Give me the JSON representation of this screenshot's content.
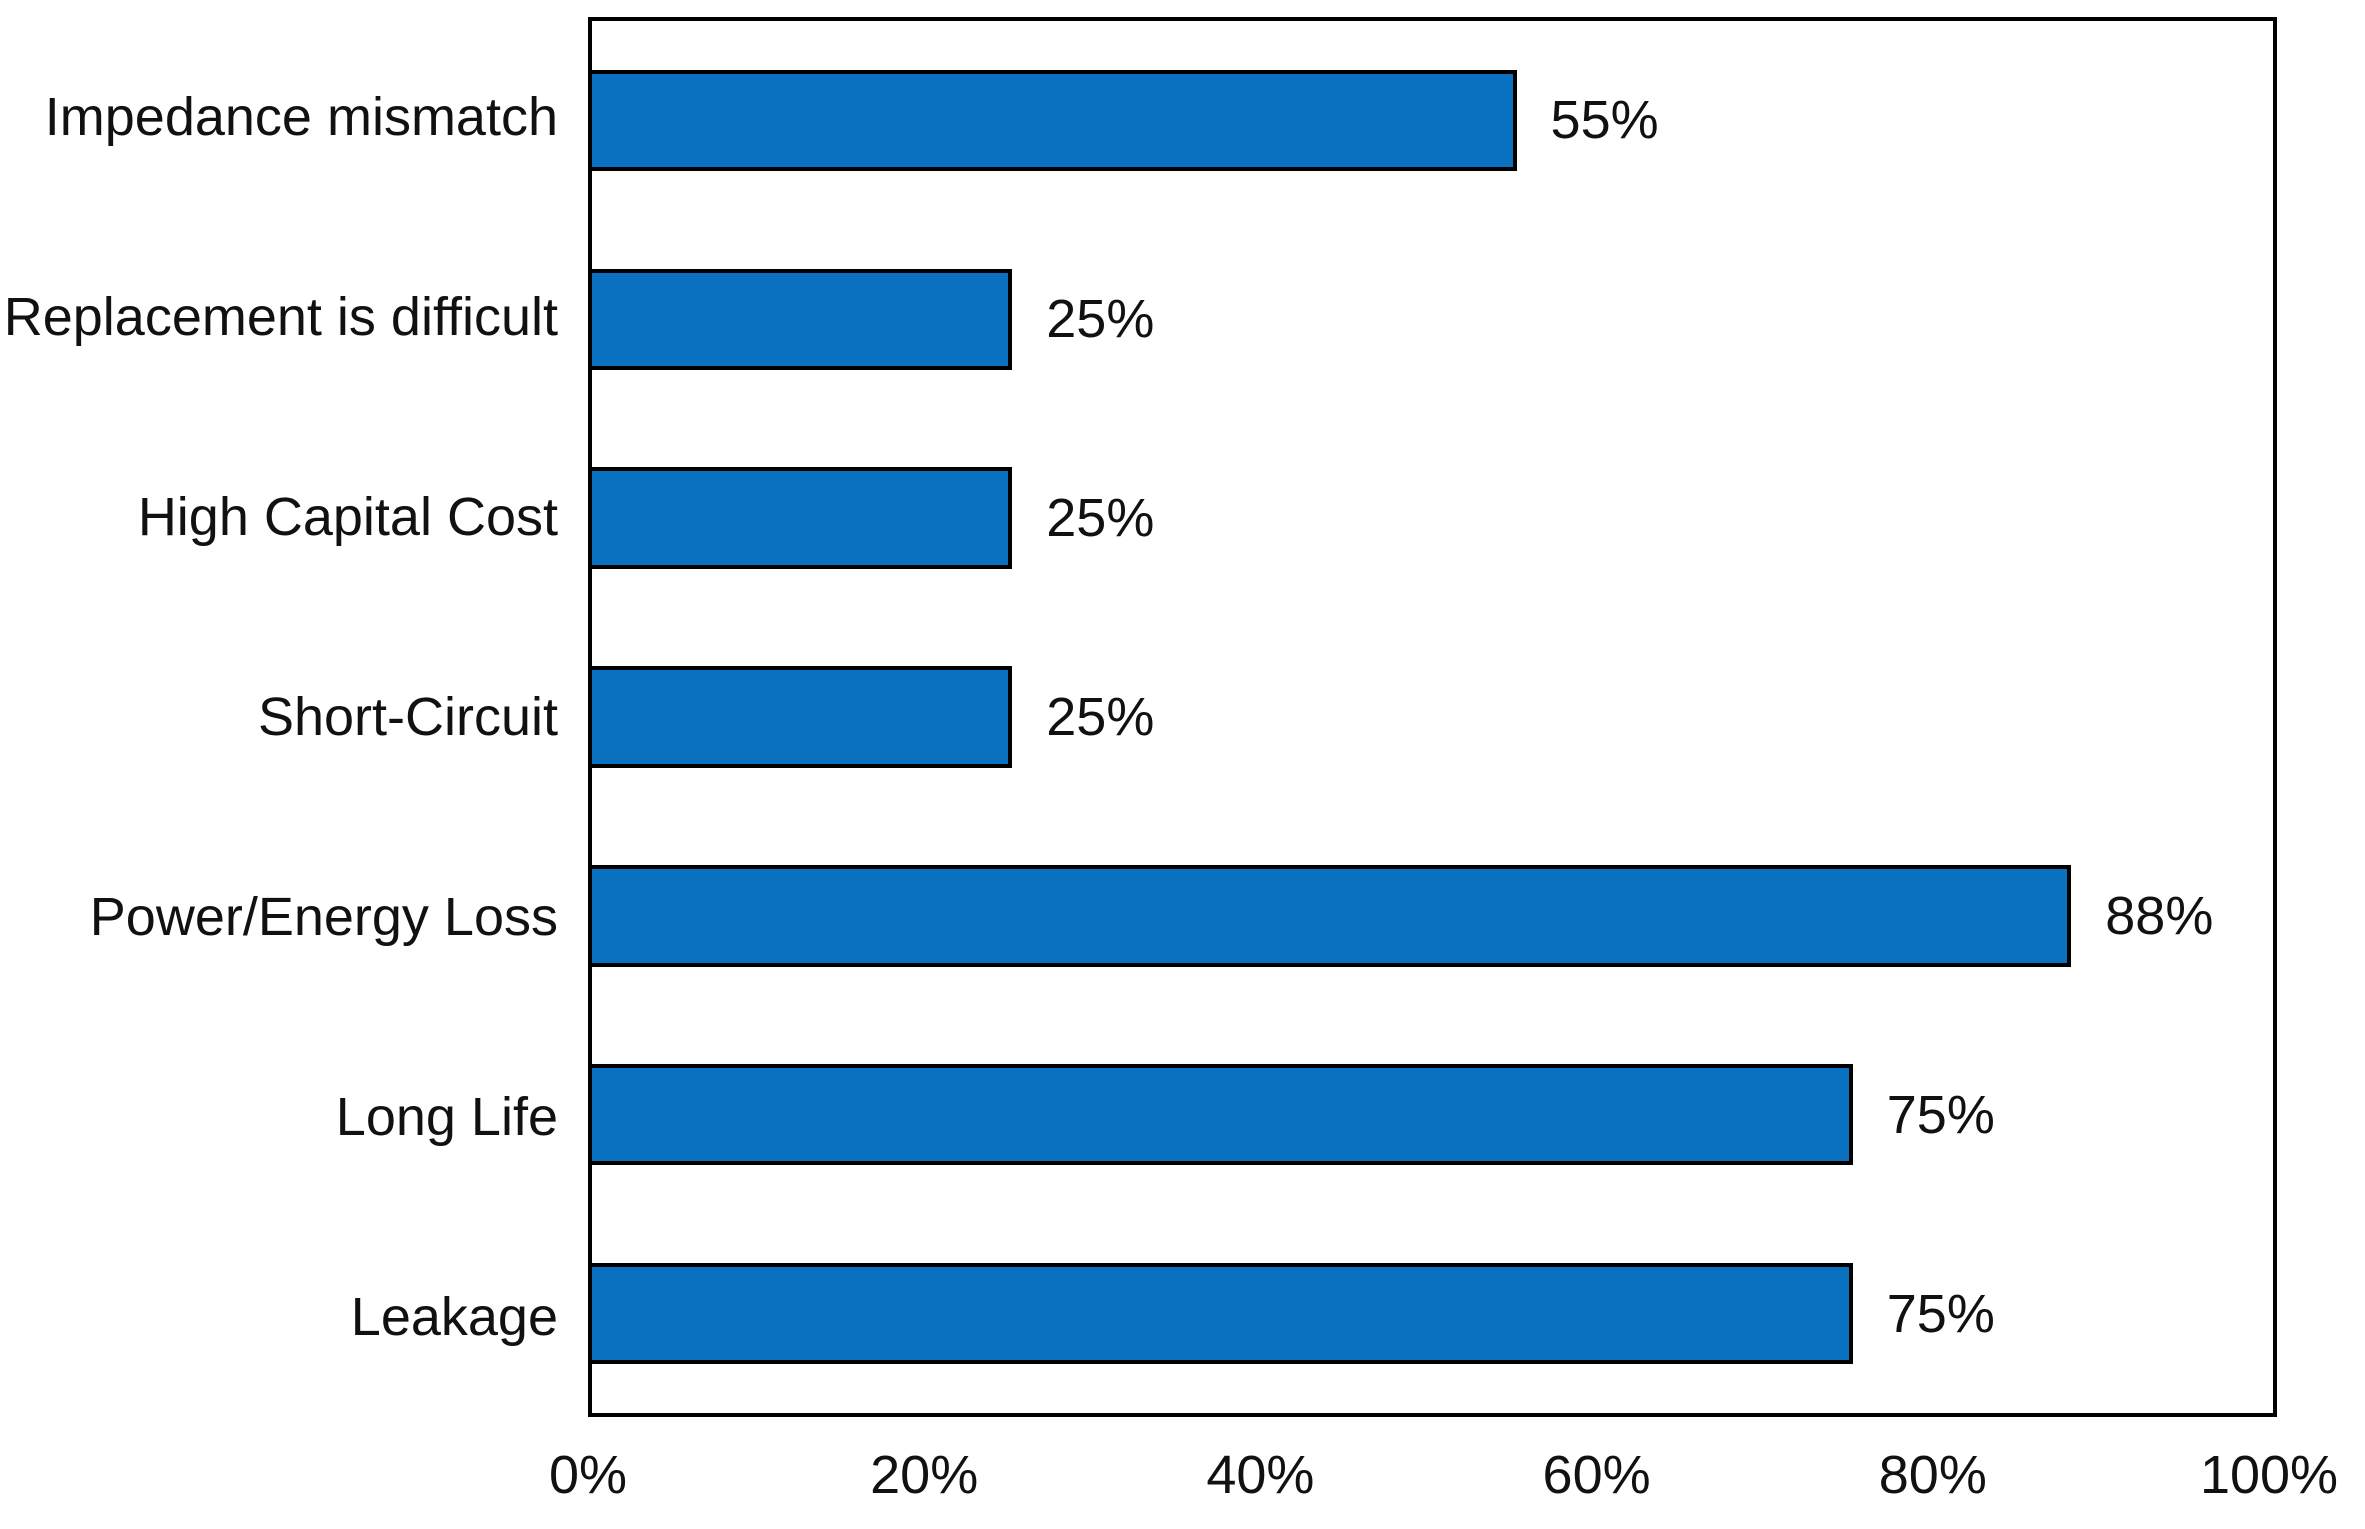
{
  "chart_data": {
    "type": "bar",
    "orientation": "horizontal",
    "title": "",
    "xlabel": "",
    "ylabel": "",
    "categories": [
      "Impedance mismatch",
      "Replacement is difficult",
      "High Capital Cost",
      "Short-Circuit",
      "Power/Energy Loss",
      "Long Life",
      "Leakage"
    ],
    "values": [
      55,
      25,
      25,
      25,
      88,
      75,
      75
    ],
    "value_labels": [
      "55%",
      "25%",
      "25%",
      "25%",
      "88%",
      "75%",
      "75%"
    ],
    "xlim": [
      0,
      100
    ],
    "x_tick_values": [
      0,
      20,
      40,
      60,
      80,
      100
    ],
    "x_tick_labels": [
      "0%",
      "20%",
      "40%",
      "60%",
      "80%",
      "100%"
    ],
    "grid": false,
    "legend": "none",
    "colors": {
      "bar_fill": "#0a71c1",
      "bar_border": "#000000",
      "frame": "#000000",
      "text": "#111111",
      "background": "#ffffff"
    }
  }
}
